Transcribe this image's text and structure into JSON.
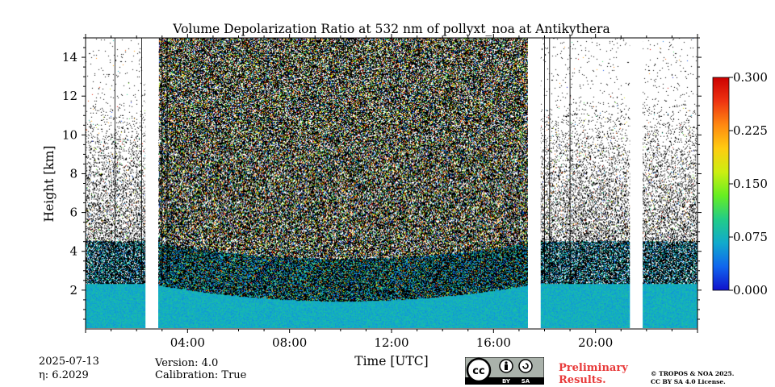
{
  "chart_data": {
    "type": "heatmap",
    "title": "Volume Depolarization Ratio at 532 nm of pollyxt_noa at Antikythera",
    "xlabel": "Time [UTC]",
    "ylabel": "Height [km]",
    "xlim_hours": [
      0,
      24
    ],
    "ylim_km": [
      0,
      15
    ],
    "x_ticks": [
      {
        "value": 4,
        "label": "04:00"
      },
      {
        "value": 8,
        "label": "08:00"
      },
      {
        "value": 12,
        "label": "12:00"
      },
      {
        "value": 16,
        "label": "16:00"
      },
      {
        "value": 20,
        "label": "20:00"
      }
    ],
    "y_ticks": [
      {
        "value": 2,
        "label": "2"
      },
      {
        "value": 4,
        "label": "4"
      },
      {
        "value": 6,
        "label": "6"
      },
      {
        "value": 8,
        "label": "8"
      },
      {
        "value": 10,
        "label": "10"
      },
      {
        "value": 12,
        "label": "12"
      },
      {
        "value": 14,
        "label": "14"
      }
    ],
    "colorbar": {
      "min": 0.0,
      "max": 0.3,
      "ticks": [
        {
          "value": 0.0,
          "label": "0.000"
        },
        {
          "value": 0.075,
          "label": "0.075"
        },
        {
          "value": 0.15,
          "label": "0.150"
        },
        {
          "value": 0.225,
          "label": "0.225"
        },
        {
          "value": 0.3,
          "label": "0.300"
        }
      ],
      "colors": [
        "#1111cc",
        "#1166ee",
        "#11aacc",
        "#22cc88",
        "#66ee22",
        "#ccee11",
        "#ffcc11",
        "#ff8811",
        "#ee3311",
        "#cc0000"
      ]
    },
    "data_gaps_hours": [
      [
        2.35,
        2.85
      ],
      [
        17.35,
        17.85
      ],
      [
        21.35,
        21.85
      ]
    ],
    "boundary_layer_top_km": 2.3,
    "noisy_region_hours": [
      2.85,
      17.35
    ]
  },
  "footer": {
    "date": "2025-07-13",
    "eta": "η: 6.2029",
    "version": "Version: 4.0",
    "calibration": "Calibration: True",
    "preliminary_line1": "Preliminary",
    "preliminary_line2": "Results.",
    "copyright_line1": "© TROPOS & NOA 2025.",
    "copyright_line2": "CC BY SA 4.0 License.",
    "license_badge": {
      "cc": "cc",
      "by": "BY",
      "sa": "SA"
    }
  }
}
